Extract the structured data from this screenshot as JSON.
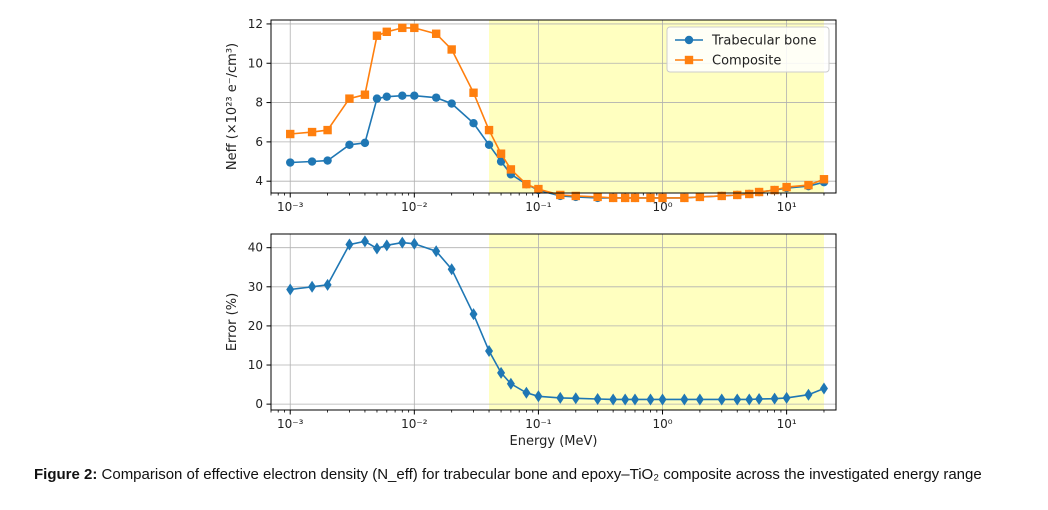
{
  "colors": {
    "blue": "#1f77b4",
    "orange": "#ff7f0e",
    "shade": "#ffffc0",
    "grid": "#b0b0b0"
  },
  "caption": {
    "label": "Figure 2:",
    "text": "Comparison of effective electron density (N_eff) for trabecular bone and epoxy–TiO₂ composite across the investigated energy range"
  },
  "chart_data": [
    {
      "type": "line",
      "title": "",
      "xlabel": "",
      "ylabel": "Neff (×10²³ e⁻/cm³)",
      "xscale": "log",
      "xlim": [
        0.0007,
        25
      ],
      "ylim": [
        3.4,
        12.2
      ],
      "xticks": [
        0.001,
        0.01,
        0.1,
        1,
        10
      ],
      "xtick_labels": [
        "10⁻³",
        "10⁻²",
        "10⁻¹",
        "10⁰",
        "10¹"
      ],
      "yticks": [
        4,
        6,
        8,
        10,
        12
      ],
      "grid": true,
      "legend": "top-right",
      "shaded_region": [
        0.04,
        20
      ],
      "x": [
        0.001,
        0.0015,
        0.002,
        0.003,
        0.004,
        0.005,
        0.006,
        0.008,
        0.01,
        0.015,
        0.02,
        0.03,
        0.04,
        0.05,
        0.06,
        0.08,
        0.1,
        0.15,
        0.2,
        0.3,
        0.4,
        0.5,
        0.6,
        0.8,
        1,
        1.5,
        2,
        3,
        4,
        5,
        6,
        8,
        10,
        15,
        20
      ],
      "series": [
        {
          "name": "Trabecular bone",
          "marker": "circle",
          "values": [
            4.95,
            5.0,
            5.05,
            5.85,
            5.95,
            8.2,
            8.3,
            8.35,
            8.35,
            8.25,
            7.95,
            6.95,
            5.85,
            5.0,
            4.35,
            3.85,
            3.55,
            3.25,
            3.2,
            3.15,
            3.15,
            3.15,
            3.15,
            3.15,
            3.15,
            3.15,
            3.2,
            3.25,
            3.3,
            3.35,
            3.45,
            3.55,
            3.65,
            3.75,
            3.95
          ]
        },
        {
          "name": "Composite",
          "marker": "square",
          "values": [
            6.4,
            6.5,
            6.6,
            8.2,
            8.4,
            11.4,
            11.6,
            11.8,
            11.8,
            11.5,
            10.7,
            8.5,
            6.6,
            5.4,
            4.6,
            3.85,
            3.6,
            3.3,
            3.25,
            3.2,
            3.15,
            3.15,
            3.15,
            3.15,
            3.15,
            3.15,
            3.2,
            3.25,
            3.3,
            3.35,
            3.45,
            3.55,
            3.7,
            3.8,
            4.1
          ]
        }
      ]
    },
    {
      "type": "line",
      "title": "",
      "xlabel": "Energy (MeV)",
      "ylabel": "Error (%)",
      "xscale": "log",
      "xlim": [
        0.0007,
        25
      ],
      "ylim": [
        -1.5,
        43.5
      ],
      "xticks": [
        0.001,
        0.01,
        0.1,
        1,
        10
      ],
      "xtick_labels": [
        "10⁻³",
        "10⁻²",
        "10⁻¹",
        "10⁰",
        "10¹"
      ],
      "yticks": [
        0,
        10,
        20,
        30,
        40
      ],
      "grid": true,
      "shaded_region": [
        0.04,
        20
      ],
      "x": [
        0.001,
        0.0015,
        0.002,
        0.003,
        0.004,
        0.005,
        0.006,
        0.008,
        0.01,
        0.015,
        0.02,
        0.03,
        0.04,
        0.05,
        0.06,
        0.08,
        0.1,
        0.15,
        0.2,
        0.3,
        0.4,
        0.5,
        0.6,
        0.8,
        1,
        1.5,
        2,
        3,
        4,
        5,
        6,
        8,
        10,
        15,
        20
      ],
      "series": [
        {
          "marker": "diamond",
          "values": [
            29.3,
            30.0,
            30.5,
            40.8,
            41.6,
            39.8,
            40.6,
            41.3,
            41.0,
            39.1,
            34.5,
            23.0,
            13.6,
            8.0,
            5.2,
            2.9,
            2.0,
            1.6,
            1.5,
            1.3,
            1.2,
            1.2,
            1.2,
            1.2,
            1.2,
            1.2,
            1.2,
            1.2,
            1.2,
            1.2,
            1.3,
            1.4,
            1.6,
            2.4,
            4.0
          ]
        }
      ]
    }
  ]
}
